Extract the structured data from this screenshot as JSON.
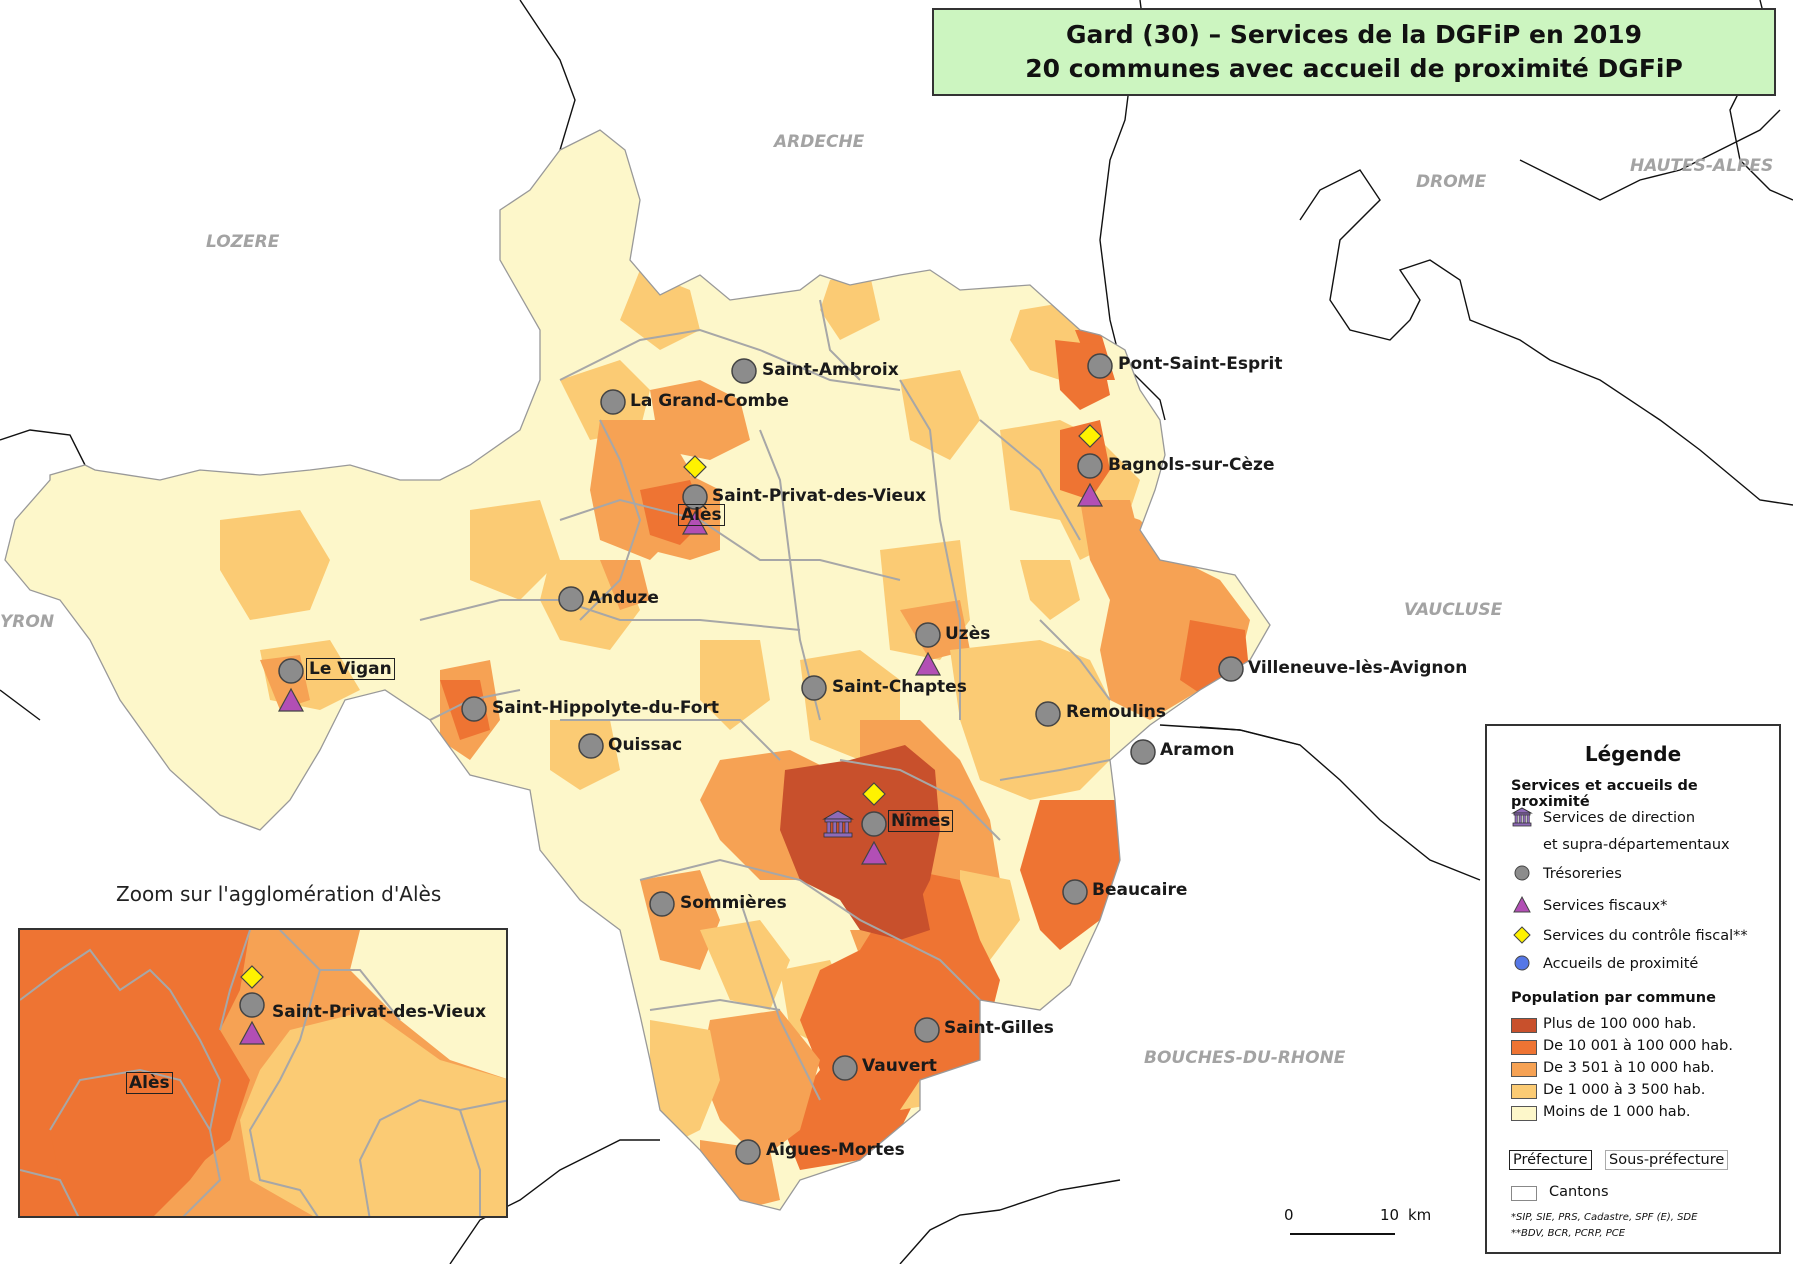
{
  "title": {
    "line1": "Gard (30) – Services de la DGFiP en 2019",
    "line2": "20 communes avec accueil de proximité DGFiP"
  },
  "neighbors": [
    {
      "id": "ardeche",
      "label": "ARDECHE"
    },
    {
      "id": "lozere",
      "label": "LOZERE"
    },
    {
      "id": "drome",
      "label": "DROME"
    },
    {
      "id": "hautes-alpes",
      "label": "HAUTES-ALPES"
    },
    {
      "id": "aveyron",
      "label": "YRON"
    },
    {
      "id": "vaucluse",
      "label": "VAUCLUSE"
    },
    {
      "id": "bouches-du-rhone",
      "label": "BOUCHES-DU-RHONE"
    }
  ],
  "places": [
    {
      "id": "saint-ambroix",
      "label": "Saint-Ambroix",
      "services": [
        "tresorerie"
      ]
    },
    {
      "id": "la-grand-combe",
      "label": "La Grand-Combe",
      "services": [
        "tresorerie"
      ]
    },
    {
      "id": "pont-saint-esprit",
      "label": "Pont-Saint-Esprit",
      "services": [
        "tresorerie"
      ]
    },
    {
      "id": "bagnols-sur-ceze",
      "label": "Bagnols-sur-Cèze",
      "services": [
        "controle",
        "tresorerie",
        "fiscal"
      ]
    },
    {
      "id": "saint-privat-des-vieux",
      "label": "Saint-Privat-des-Vieux",
      "services": [
        "controle",
        "tresorerie"
      ]
    },
    {
      "id": "ales",
      "label": "Alès",
      "status": "sous-prefecture",
      "services": [
        "fiscal"
      ]
    },
    {
      "id": "anduze",
      "label": "Anduze",
      "services": [
        "tresorerie"
      ]
    },
    {
      "id": "uzes",
      "label": "Uzès",
      "services": [
        "tresorerie",
        "fiscal"
      ]
    },
    {
      "id": "villeneuve-les-avignon",
      "label": "Villeneuve-lès-Avignon",
      "services": [
        "tresorerie"
      ]
    },
    {
      "id": "le-vigan",
      "label": "Le Vigan",
      "status": "sous-prefecture",
      "services": [
        "tresorerie",
        "fiscal"
      ]
    },
    {
      "id": "saint-chaptes",
      "label": "Saint-Chaptes",
      "services": [
        "tresorerie"
      ]
    },
    {
      "id": "saint-hippolyte-du-fort",
      "label": "Saint-Hippolyte-du-Fort",
      "services": [
        "tresorerie"
      ]
    },
    {
      "id": "remoulins",
      "label": "Remoulins",
      "services": [
        "tresorerie"
      ]
    },
    {
      "id": "quissac",
      "label": "Quissac",
      "services": [
        "tresorerie"
      ]
    },
    {
      "id": "aramon",
      "label": "Aramon",
      "services": [
        "tresorerie"
      ]
    },
    {
      "id": "nimes",
      "label": "Nîmes",
      "status": "prefecture",
      "services": [
        "direction",
        "controle",
        "tresorerie",
        "fiscal"
      ]
    },
    {
      "id": "beaucaire",
      "label": "Beaucaire",
      "services": [
        "tresorerie"
      ]
    },
    {
      "id": "sommieres",
      "label": "Sommières",
      "services": [
        "tresorerie"
      ]
    },
    {
      "id": "saint-gilles",
      "label": "Saint-Gilles",
      "services": [
        "tresorerie"
      ]
    },
    {
      "id": "vauvert",
      "label": "Vauvert",
      "services": [
        "tresorerie"
      ]
    },
    {
      "id": "aigues-mortes",
      "label": "Aigues-Mortes",
      "services": [
        "tresorerie"
      ]
    }
  ],
  "zoom": {
    "title": "Zoom sur l'agglomération d'Alès",
    "ales_label": "Alès",
    "spdv_label": "Saint-Privat-des-Vieux"
  },
  "legend": {
    "title": "Légende",
    "section_services": "Services et accueils de proximité",
    "direction_line1": "Services de direction",
    "direction_line2": "et supra-départementaux",
    "tresoreries": "Trésoreries",
    "fiscaux": "Services fiscaux*",
    "controle": "Services du contrôle fiscal**",
    "accueils": "Accueils de proximité",
    "section_population": "Population par commune",
    "pop_classes": [
      {
        "label": "Plus de 100 000 hab.",
        "color": "#c8502c"
      },
      {
        "label": "De 10 001 à 100 000 hab.",
        "color": "#ee7433"
      },
      {
        "label": "De 3 501 à  10 000 hab.",
        "color": "#f6a254"
      },
      {
        "label": "De 1 000 à  3 500 hab.",
        "color": "#fbcb74"
      },
      {
        "label": "Moins de 1 000 hab.",
        "color": "#fdf7ca"
      }
    ],
    "prefecture": "Préfecture",
    "sous_prefecture": "Sous-préfecture",
    "cantons": "Cantons",
    "footnote1": "*SIP, SIE, PRS, Cadastre, SPF (E), SDE",
    "footnote2": "**BDV, BCR, PCRP, PCE"
  },
  "scale": {
    "zero": "0",
    "ten": "10",
    "unit": "km"
  },
  "colors": {
    "tresorerie": "#8c8c8c",
    "fiscal": "#b24fb5",
    "controle": "#fff200",
    "direction": "#8e6ab8",
    "accueil": "#5577e6",
    "title_bg": "#ccf5c0"
  }
}
